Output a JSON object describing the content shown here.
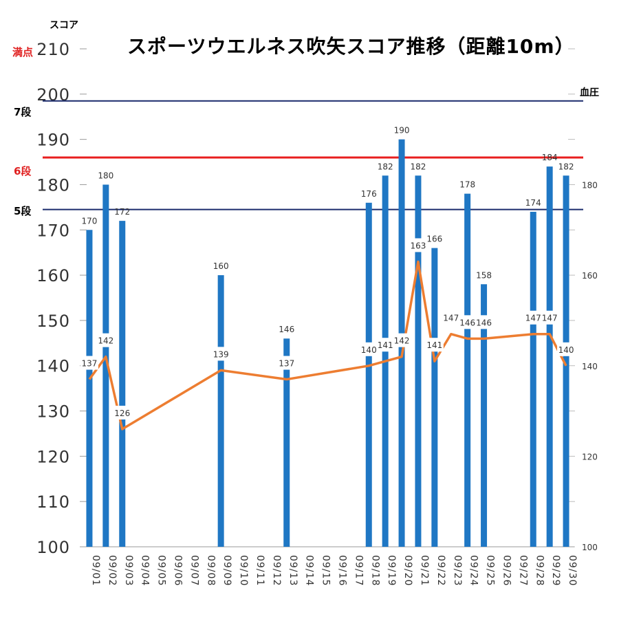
{
  "chart_data": {
    "type": "bar+line",
    "title": "スポーツウエルネス吹矢スコア推移（距離10m）",
    "left_axis_title": "スコア",
    "right_axis_title": "血圧",
    "categories": [
      "09/01",
      "09/02",
      "09/03",
      "09/04",
      "09/05",
      "09/06",
      "09/07",
      "09/08",
      "09/09",
      "09/10",
      "09/11",
      "09/12",
      "09/13",
      "09/14",
      "09/15",
      "09/16",
      "09/17",
      "09/18",
      "09/19",
      "09/20",
      "09/21",
      "09/22",
      "09/23",
      "09/24",
      "09/25",
      "09/26",
      "09/27",
      "09/28",
      "09/29",
      "09/30"
    ],
    "bar_series": {
      "axis": "left",
      "color": "#1f77c4",
      "values": [
        170,
        180,
        172,
        null,
        null,
        null,
        null,
        null,
        160,
        null,
        null,
        null,
        146,
        null,
        null,
        null,
        null,
        176,
        182,
        190,
        182,
        166,
        null,
        178,
        158,
        null,
        null,
        174,
        184,
        182
      ]
    },
    "line_series": {
      "axis": "right",
      "color": "#ed7d31",
      "values": [
        137,
        142,
        126,
        null,
        null,
        null,
        null,
        null,
        139,
        null,
        null,
        null,
        137,
        null,
        null,
        null,
        null,
        140,
        141,
        142,
        163,
        141,
        147,
        146,
        146,
        null,
        null,
        147,
        147,
        140
      ]
    },
    "left_axis": {
      "ylim": [
        100,
        210
      ],
      "ticks": [
        100,
        110,
        120,
        130,
        140,
        150,
        160,
        170,
        180,
        190,
        200,
        210
      ]
    },
    "right_axis": {
      "ylim": [
        100,
        200
      ],
      "ticks": [
        100,
        120,
        140,
        160,
        180
      ]
    },
    "reference_lines": [
      {
        "label": "満点",
        "value": 210,
        "color": "#e02020"
      },
      {
        "label": "7段",
        "value": 198.5,
        "color": "#1a2a6c"
      },
      {
        "label": "6段",
        "value": 186,
        "color": "#e81e1e"
      },
      {
        "label": "5段",
        "value": 174.5,
        "color": "#1a2a6c"
      }
    ]
  }
}
